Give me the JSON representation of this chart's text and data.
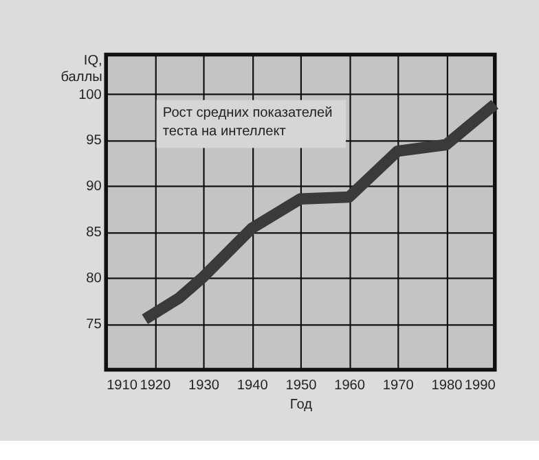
{
  "chart_data": {
    "type": "line",
    "xlabel": "Год",
    "ylabel": "IQ,\nбаллы",
    "x": [
      1918,
      1925,
      1930,
      1940,
      1950,
      1960,
      1970,
      1980,
      1990
    ],
    "series": [
      {
        "color": "#3a3a3a",
        "values": [
          75.5,
          77.8,
          80.1,
          85.4,
          88.6,
          88.8,
          93.8,
          94.5,
          98.9
        ]
      }
    ],
    "xlim": [
      1910,
      1990
    ],
    "xticks": [
      1910,
      1920,
      1930,
      1940,
      1950,
      1960,
      1970,
      1980,
      1990
    ],
    "ylim": [
      70,
      104.3
    ],
    "yticks": [
      75,
      80,
      85,
      90,
      95,
      100
    ],
    "annotations": [
      {
        "text": "Рост средних показателей\nтеста на интеллект"
      }
    ],
    "grid": true,
    "marker": "none",
    "line_style": "solid"
  }
}
